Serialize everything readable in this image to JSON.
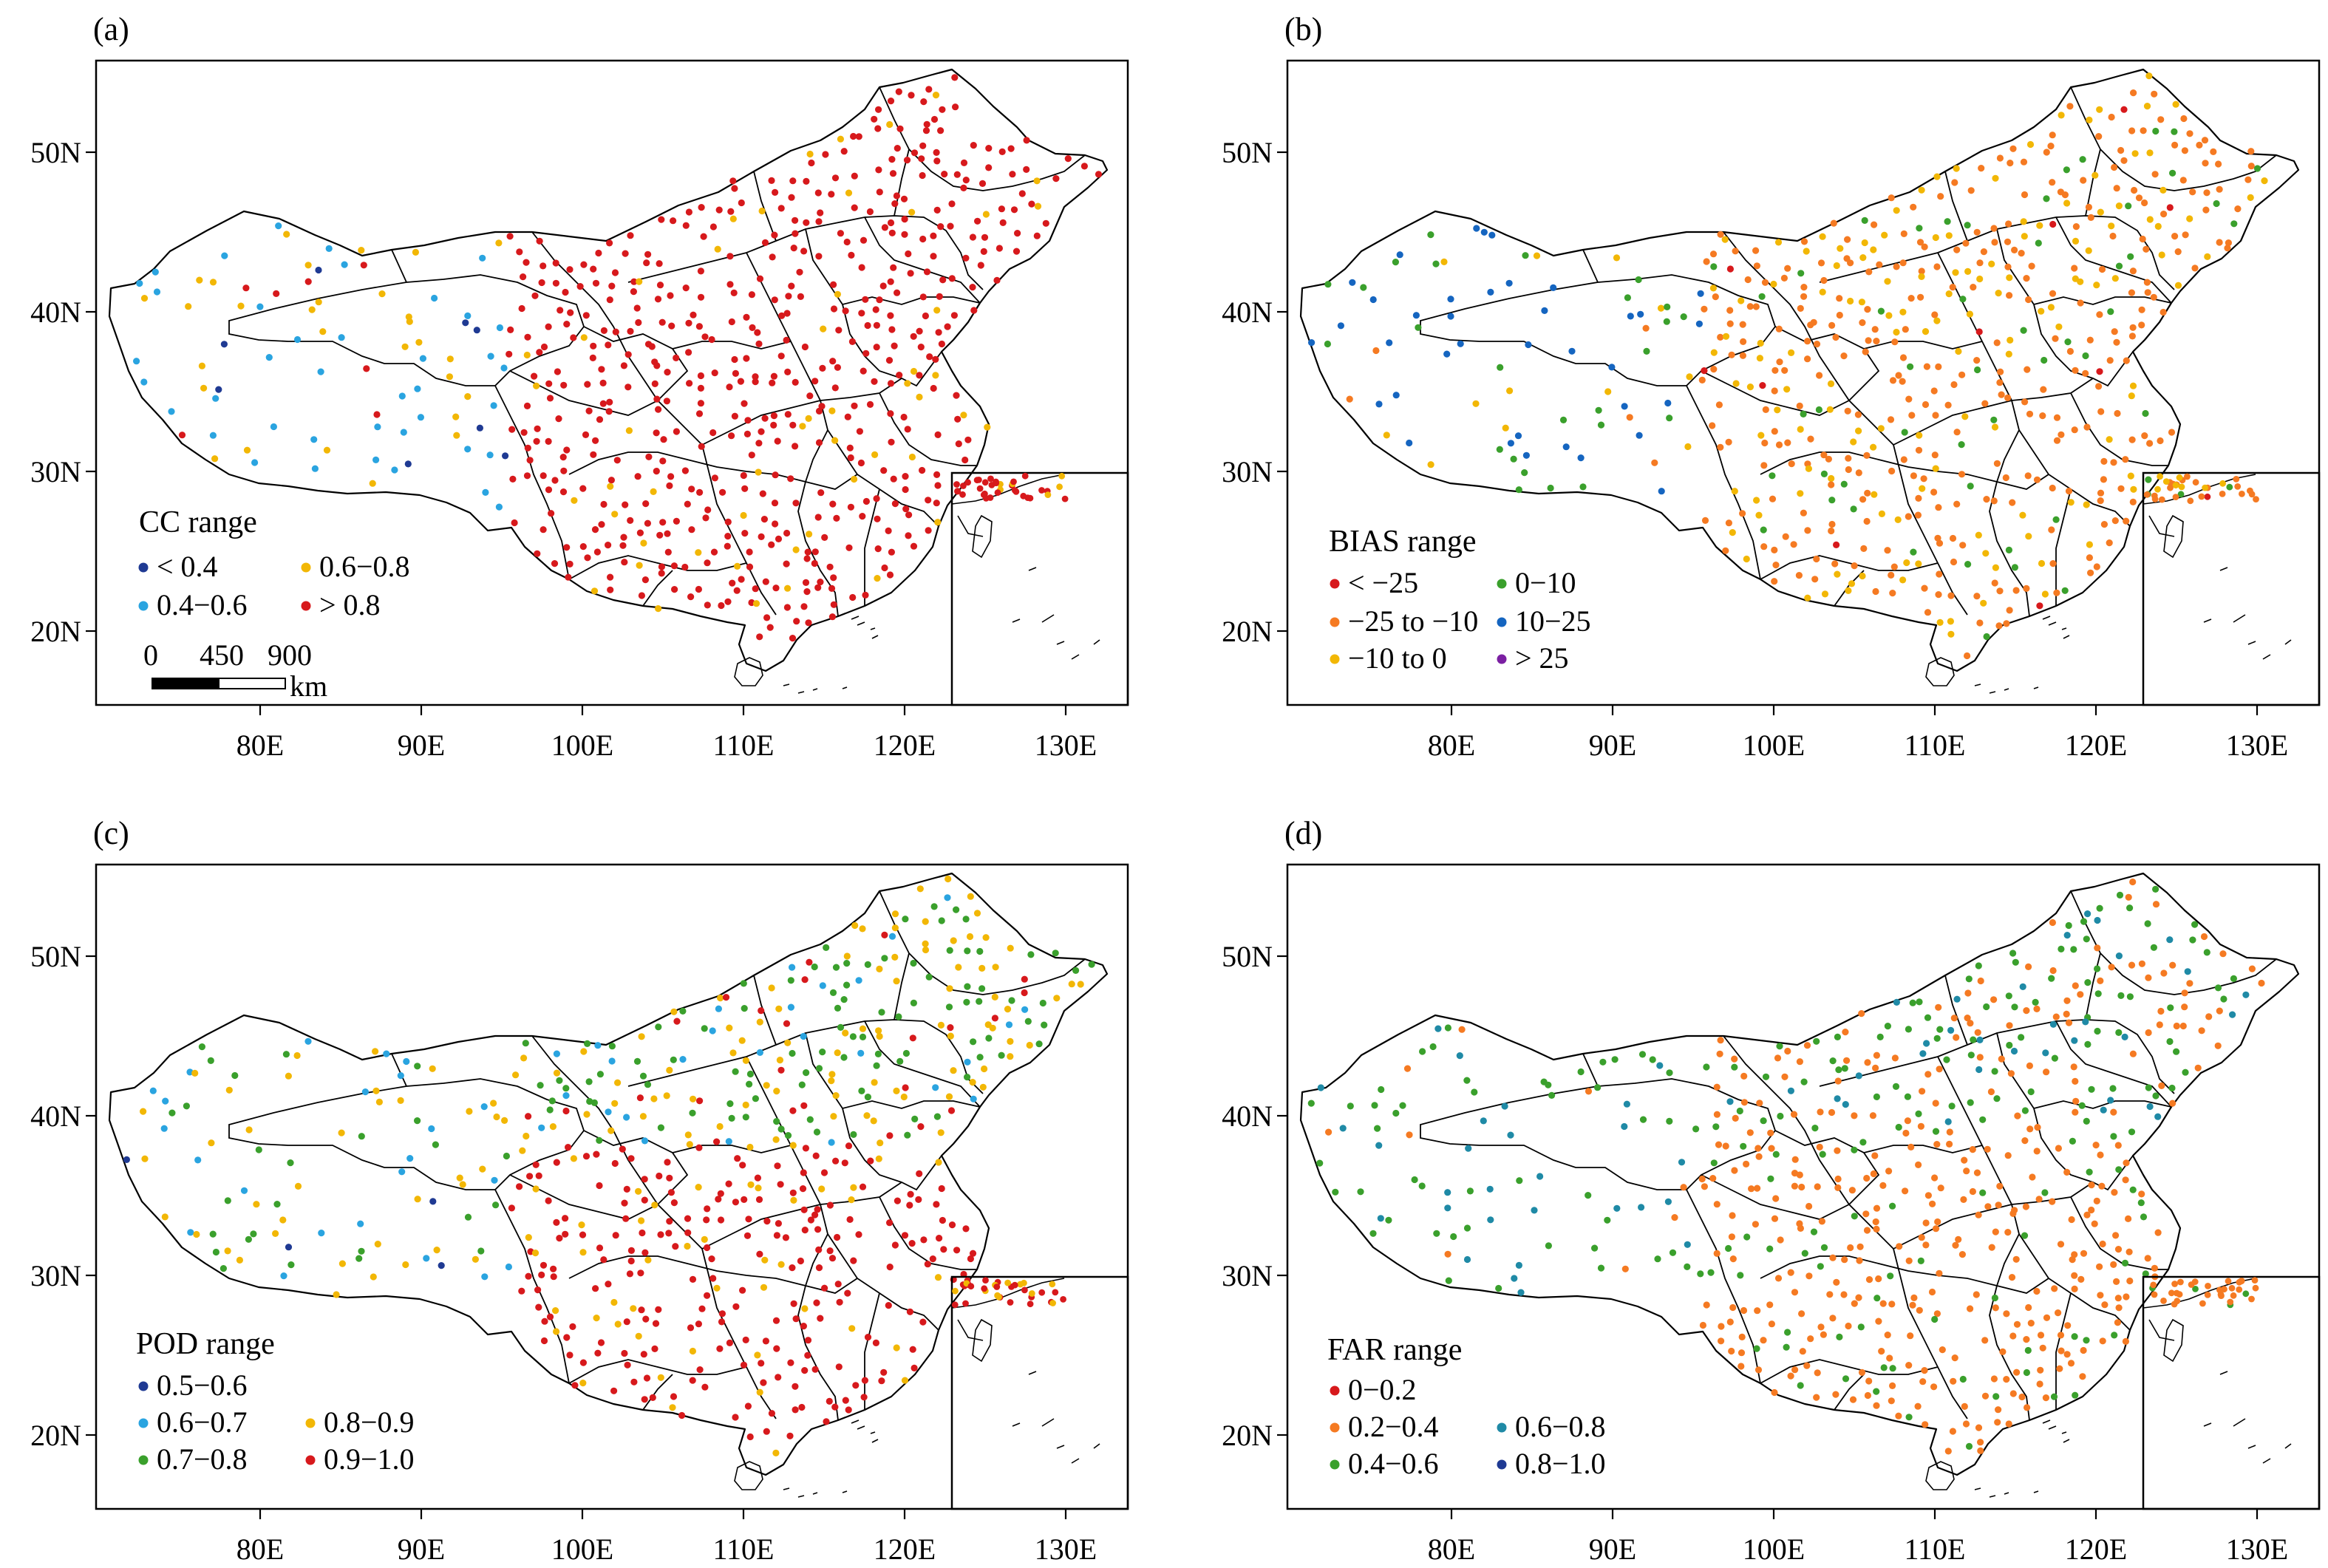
{
  "panels": [
    {
      "label": "(a)",
      "legend_title": "CC range",
      "scale_bar": {
        "ticks": [
          "0",
          "450",
          "900"
        ],
        "unit": "km"
      },
      "categories": [
        {
          "label": "< 0.4",
          "color": "#1f3a93"
        },
        {
          "label": "0.4−0.6",
          "color": "#2aa4e0"
        },
        {
          "label": "0.6−0.8",
          "color": "#f2b705"
        },
        {
          "label": "> 0.8",
          "color": "#d7191c"
        }
      ]
    },
    {
      "label": "(b)",
      "legend_title": "BIAS range",
      "categories": [
        {
          "label": "< −25",
          "color": "#d7191c"
        },
        {
          "label": "−25 to −10",
          "color": "#f57a22"
        },
        {
          "label": "−10 to 0",
          "color": "#f2b705"
        },
        {
          "label": "0−10",
          "color": "#3aa02c"
        },
        {
          "label": "10−25",
          "color": "#1565c0"
        },
        {
          "label": "> 25",
          "color": "#7b1fa2"
        }
      ]
    },
    {
      "label": "(c)",
      "legend_title": "POD range",
      "categories": [
        {
          "label": "0.5−0.6",
          "color": "#1f3a93"
        },
        {
          "label": "0.6−0.7",
          "color": "#2aa4e0"
        },
        {
          "label": "0.7−0.8",
          "color": "#3aa02c"
        },
        {
          "label": "0.8−0.9",
          "color": "#f2b705"
        },
        {
          "label": "0.9−1.0",
          "color": "#d7191c"
        }
      ]
    },
    {
      "label": "(d)",
      "legend_title": "FAR range",
      "categories": [
        {
          "label": "0−0.2",
          "color": "#d7191c"
        },
        {
          "label": "0.2−0.4",
          "color": "#f57a22"
        },
        {
          "label": "0.4−0.6",
          "color": "#3aa02c"
        },
        {
          "label": "0.6−0.8",
          "color": "#1f8aa6"
        },
        {
          "label": "0.8−1.0",
          "color": "#1f3a93"
        }
      ]
    }
  ],
  "axes": {
    "x_ticks": [
      "80E",
      "90E",
      "100E",
      "110E",
      "120E",
      "130E"
    ],
    "y_ticks": [
      "20N",
      "30N",
      "40N",
      "50N"
    ]
  }
}
